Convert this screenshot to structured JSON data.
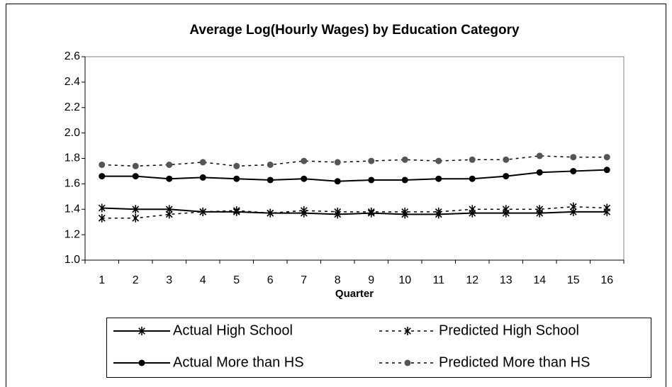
{
  "chart_data": {
    "type": "line",
    "title": "Average Log(Hourly Wages) by Education Category",
    "x_label": "Quarter",
    "categories": [
      "1",
      "2",
      "3",
      "4",
      "5",
      "6",
      "7",
      "8",
      "9",
      "10",
      "11",
      "12",
      "13",
      "14",
      "15",
      "16"
    ],
    "ylim": [
      1.0,
      2.6
    ],
    "yticks": [
      {
        "value": 1.0,
        "label": "1.0"
      },
      1.2,
      1.4,
      1.6,
      1.8,
      {
        "value": 2.0,
        "label": "2.0"
      },
      2.2,
      2.4,
      2.6
    ],
    "grid": false,
    "legend": "bottom",
    "series": [
      {
        "name": "Actual High School",
        "color": "#000000",
        "marker": "asterisk",
        "dashed": false,
        "values": [
          1.41,
          1.4,
          1.4,
          1.38,
          1.38,
          1.37,
          1.37,
          1.36,
          1.37,
          1.36,
          1.36,
          1.37,
          1.37,
          1.37,
          1.38,
          1.38
        ]
      },
      {
        "name": "Predicted High School",
        "color": "#000000",
        "marker": "asterisk",
        "dashed": true,
        "values": [
          1.33,
          1.33,
          1.36,
          1.38,
          1.39,
          1.37,
          1.39,
          1.38,
          1.38,
          1.38,
          1.38,
          1.4,
          1.4,
          1.4,
          1.42,
          1.41
        ]
      },
      {
        "name": "Actual More than HS",
        "color": "#000000",
        "marker": "circle",
        "dashed": false,
        "values": [
          1.66,
          1.66,
          1.64,
          1.65,
          1.64,
          1.63,
          1.64,
          1.62,
          1.63,
          1.63,
          1.64,
          1.64,
          1.66,
          1.69,
          1.7,
          1.71
        ]
      },
      {
        "name": "Predicted More than HS",
        "color": "#555555",
        "marker": "circle",
        "dashed": true,
        "values": [
          1.75,
          1.74,
          1.75,
          1.77,
          1.74,
          1.75,
          1.78,
          1.77,
          1.78,
          1.79,
          1.78,
          1.79,
          1.79,
          1.82,
          1.81,
          1.81
        ]
      }
    ]
  }
}
